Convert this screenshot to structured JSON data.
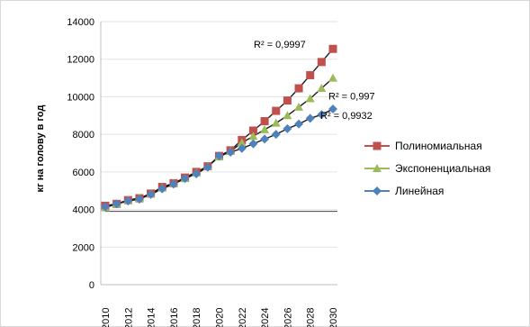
{
  "chart_data": {
    "type": "line",
    "ylabel": "кг на голову в год",
    "ylim": [
      0,
      14000
    ],
    "yticks": [
      "0",
      "2000",
      "4000",
      "6000",
      "8000",
      "10000",
      "12000",
      "14000"
    ],
    "xticks": [
      "2010",
      "2012",
      "2014",
      "2016",
      "2018",
      "2020",
      "2022",
      "2024",
      "2026",
      "2028",
      "2030"
    ],
    "x": [
      2010,
      2011,
      2012,
      2013,
      2014,
      2015,
      2016,
      2017,
      2018,
      2019,
      2020,
      2021,
      2022,
      2023,
      2024,
      2025,
      2026,
      2027,
      2028,
      2029,
      2030
    ],
    "series": [
      {
        "name": "Полиномиальная",
        "color": "#C0504D",
        "marker": "square",
        "values": [
          4200,
          4300,
          4500,
          4600,
          4850,
          5200,
          5400,
          5700,
          6000,
          6300,
          6850,
          7150,
          7700,
          8200,
          8700,
          9250,
          9800,
          10450,
          11150,
          11850,
          12550
        ]
      },
      {
        "name": "Экспоненциальная",
        "color": "#9BBB59",
        "marker": "triangle",
        "values": [
          4100,
          4300,
          4500,
          4600,
          4850,
          5150,
          5400,
          5650,
          5950,
          6300,
          6800,
          7100,
          7550,
          7900,
          8250,
          8600,
          9000,
          9450,
          9900,
          10450,
          11000
        ]
      },
      {
        "name": "Линейная",
        "color": "#4F81BD",
        "marker": "diamond",
        "values": [
          4150,
          4300,
          4450,
          4550,
          4800,
          5100,
          5350,
          5650,
          5900,
          6250,
          6850,
          7050,
          7250,
          7500,
          7750,
          8000,
          8300,
          8550,
          8850,
          9050,
          9350
        ]
      }
    ],
    "annotations": [
      {
        "text": "R² = 0,9997",
        "series": 0
      },
      {
        "text": "R² = 0,997",
        "series": 1
      },
      {
        "text": "R² = 0,9932",
        "series": 2
      }
    ],
    "legend_position": "right"
  }
}
